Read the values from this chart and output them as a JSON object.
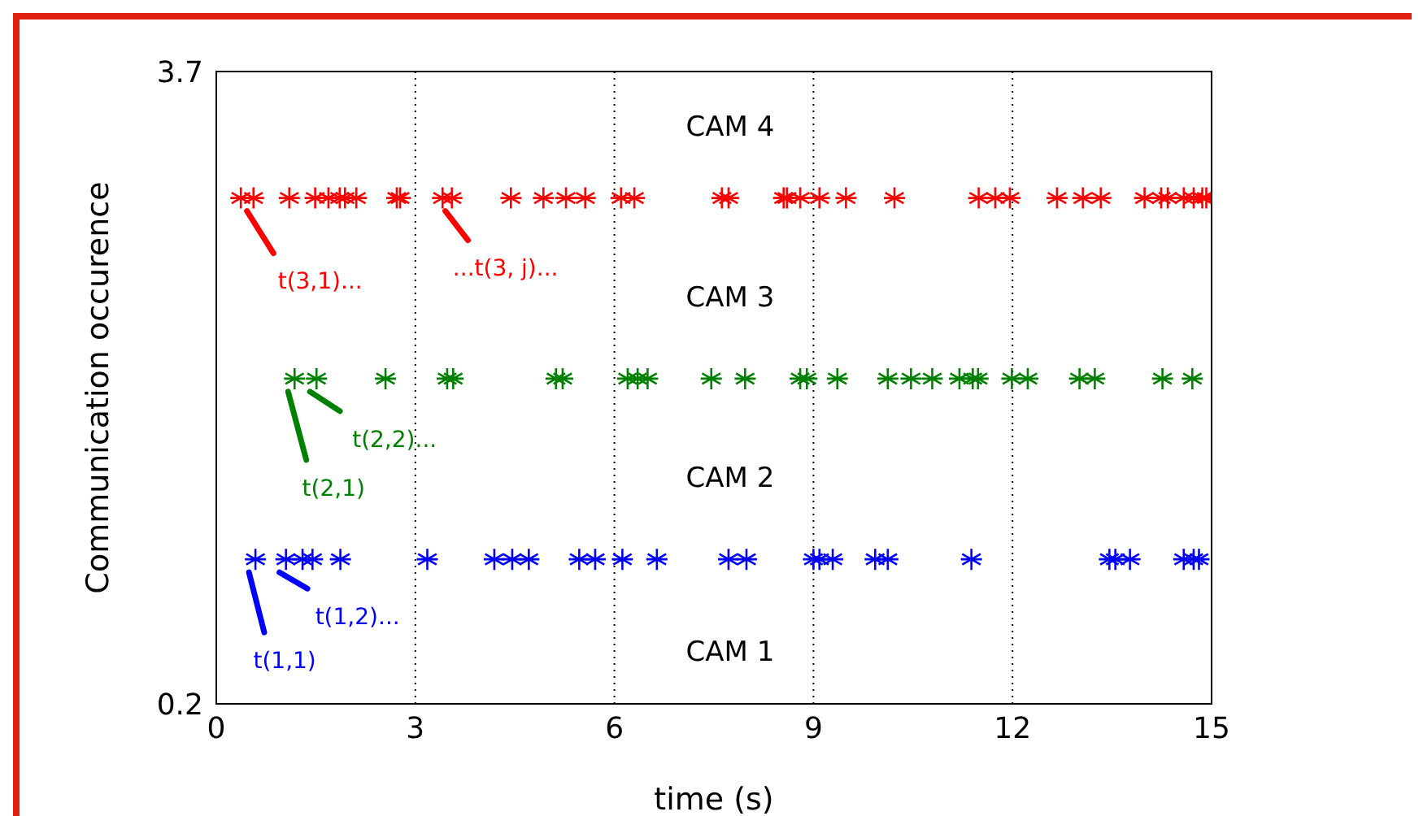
{
  "chart_data": {
    "type": "scatter",
    "xlabel": "time (s)",
    "ylabel": "Communication occurence",
    "xlim": [
      0,
      15
    ],
    "xticks": [
      0,
      3,
      6,
      9,
      12,
      15
    ],
    "ylim": [
      0.2,
      3.7
    ],
    "yticks": [
      0.2,
      3.7
    ],
    "grid": "x",
    "marker": "cross",
    "series": [
      {
        "color": "#0000ff",
        "x": [
          0.59,
          1.05,
          1.3,
          1.45,
          1.87,
          3.18,
          4.19,
          4.46,
          4.71,
          5.47,
          5.71,
          6.12,
          6.64,
          7.72,
          7.99,
          9.0,
          9.09,
          9.29,
          9.93,
          10.12,
          11.38,
          13.46,
          13.55,
          13.77,
          14.58,
          14.73,
          14.81
        ],
        "values": [
          1,
          1,
          1,
          1,
          1,
          1,
          1,
          1,
          1,
          1,
          1,
          1,
          1,
          1,
          1,
          1,
          1,
          1,
          1,
          1,
          1,
          1,
          1,
          1,
          1,
          1,
          1
        ]
      },
      {
        "color": "#008000",
        "x": [
          1.18,
          1.51,
          2.55,
          3.48,
          3.57,
          5.12,
          5.22,
          6.2,
          6.35,
          6.5,
          7.46,
          7.97,
          8.8,
          8.9,
          9.36,
          10.12,
          10.47,
          10.79,
          11.2,
          11.4,
          11.48,
          11.99,
          12.23,
          13.01,
          13.24,
          14.26,
          14.71
        ],
        "values": [
          2,
          2,
          2,
          2,
          2,
          2,
          2,
          2,
          2,
          2,
          2,
          2,
          2,
          2,
          2,
          2,
          2,
          2,
          2,
          2,
          2,
          2,
          2,
          2,
          2,
          2,
          2
        ]
      },
      {
        "color": "#ff0000",
        "x": [
          0.37,
          0.56,
          1.1,
          1.49,
          1.69,
          1.86,
          1.94,
          2.11,
          2.72,
          2.77,
          3.41,
          3.55,
          4.44,
          4.93,
          5.27,
          5.56,
          6.1,
          6.3,
          7.62,
          7.72,
          8.55,
          8.6,
          8.8,
          9.09,
          9.49,
          10.22,
          11.49,
          11.74,
          11.96,
          12.67,
          13.06,
          13.33,
          13.99,
          14.24,
          14.34,
          14.58,
          14.73,
          14.86,
          14.92
        ],
        "values": [
          3,
          3,
          3,
          3,
          3,
          3,
          3,
          3,
          3,
          3,
          3,
          3,
          3,
          3,
          3,
          3,
          3,
          3,
          3,
          3,
          3,
          3,
          3,
          3,
          3,
          3,
          3,
          3,
          3,
          3,
          3,
          3,
          3,
          3,
          3,
          3,
          3,
          3,
          3
        ]
      }
    ],
    "annotations": [
      "CAM 4",
      "CAM 3",
      "CAM 2",
      "CAM 1",
      {
        "text": "t(3,1)...",
        "x": 0.56,
        "y": 3
      },
      {
        "text": "...t(3, j)...",
        "x": 3.55,
        "y": 3
      },
      {
        "text": "t(2,1)",
        "x": 1.18,
        "y": 2
      },
      {
        "text": "t(2,2)...",
        "x": 1.51,
        "y": 2
      },
      {
        "text": "t(1,1)",
        "x": 0.59,
        "y": 1
      },
      {
        "text": "t(1,2)...",
        "x": 1.05,
        "y": 1
      }
    ]
  }
}
